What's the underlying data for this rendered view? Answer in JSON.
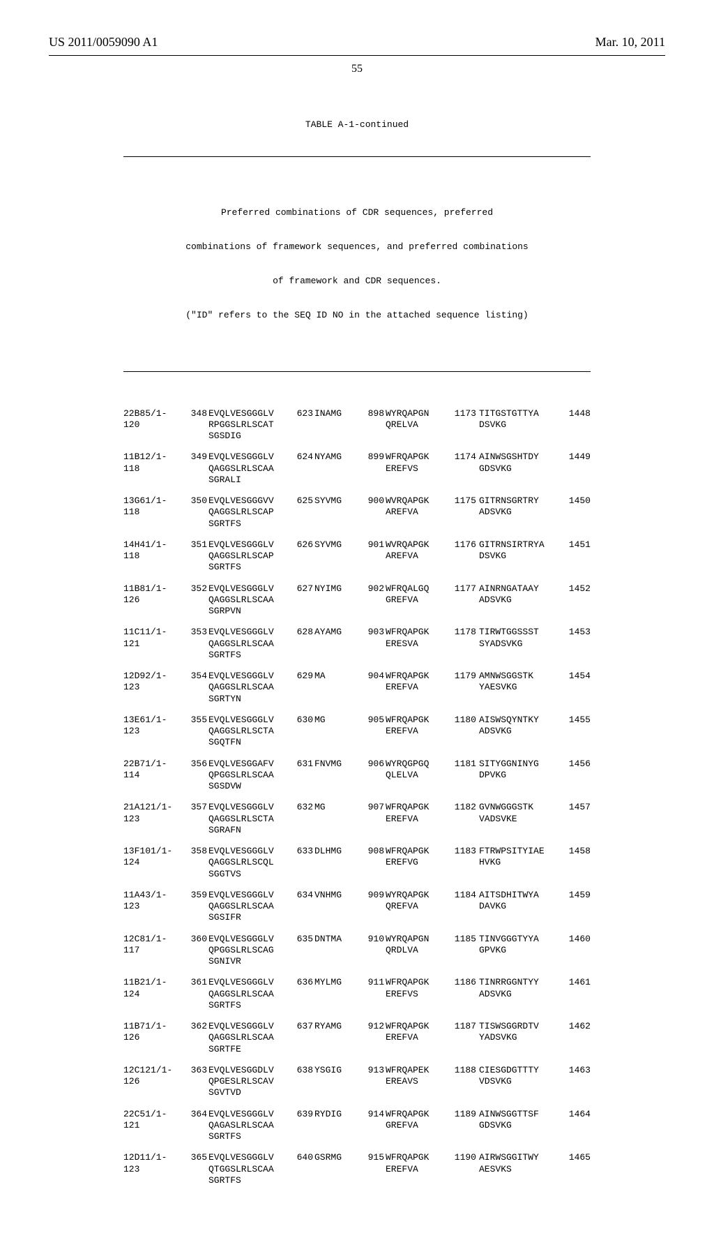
{
  "header": {
    "left": "US 2011/0059090 A1",
    "right": "Mar. 10, 2011"
  },
  "page_number": "55",
  "table": {
    "title": "TABLE A-1-continued",
    "caption_lines": [
      "Preferred combinations of CDR sequences, preferred",
      "combinations of framework sequences, and preferred combinations",
      "of framework and CDR sequences.",
      "(\"ID\" refers to the SEQ ID NO in the attached sequence listing)"
    ],
    "rows": [
      {
        "id": "22B85/1-120",
        "n1": "348",
        "s1": [
          "EVQLVESGGGLV",
          "RPGGSLRLSCAT",
          "SGSDIG"
        ],
        "n2": "623",
        "s2": "INAMG",
        "n3": "898",
        "s3": [
          "WYRQAPGN",
          "QRELVA"
        ],
        "n4": "1173",
        "s4": [
          "TITGSTGTTYA",
          "DSVKG"
        ],
        "n5": "1448"
      },
      {
        "id": "11B12/1-118",
        "n1": "349",
        "s1": [
          "EVQLVESGGGLV",
          "QAGGSLRLSCAA",
          "SGRALI"
        ],
        "n2": "624",
        "s2": "NYAMG",
        "n3": "899",
        "s3": [
          "WFRQAPGK",
          "EREFVS"
        ],
        "n4": "1174",
        "s4": [
          "AINWSGSHTDY",
          "GDSVKG"
        ],
        "n5": "1449"
      },
      {
        "id": "13G61/1-118",
        "n1": "350",
        "s1": [
          "EVQLVESGGGVV",
          "QAGGSLRLSCAP",
          "SGRTFS"
        ],
        "n2": "625",
        "s2": "SYVMG",
        "n3": "900",
        "s3": [
          "WVRQAPGK",
          "AREFVA"
        ],
        "n4": "1175",
        "s4": [
          "GITRNSGRTRY",
          "ADSVKG"
        ],
        "n5": "1450"
      },
      {
        "id": "14H41/1-118",
        "n1": "351",
        "s1": [
          "EVQLVESGGGLV",
          "QAGGSLRLSCAP",
          "SGRTFS"
        ],
        "n2": "626",
        "s2": "SYVMG",
        "n3": "901",
        "s3": [
          "WVRQAPGK",
          "AREFVA"
        ],
        "n4": "1176",
        "s4": [
          "GITRNSIRTRYA",
          "DSVKG"
        ],
        "n5": "1451"
      },
      {
        "id": "11B81/1-126",
        "n1": "352",
        "s1": [
          "EVQLVESGGGLV",
          "QAGGSLRLSCAA",
          "SGRPVN"
        ],
        "n2": "627",
        "s2": "NYIMG",
        "n3": "902",
        "s3": [
          "WFRQALGQ",
          "GREFVA"
        ],
        "n4": "1177",
        "s4": [
          "AINRNGATAAY",
          "ADSVKG"
        ],
        "n5": "1452"
      },
      {
        "id": "11C11/1-121",
        "n1": "353",
        "s1": [
          "EVQLVESGGGLV",
          "QAGGSLRLSCAA",
          "SGRTFS"
        ],
        "n2": "628",
        "s2": "AYAMG",
        "n3": "903",
        "s3": [
          "WFRQAPGK",
          "ERESVA"
        ],
        "n4": "1178",
        "s4": [
          "TIRWTGGSSST",
          "SYADSVKG"
        ],
        "n5": "1453"
      },
      {
        "id": "12D92/1-123",
        "n1": "354",
        "s1": [
          "EVQLVESGGGLV",
          "QAGGSLRLSCAA",
          "SGRTYN"
        ],
        "n2": "629",
        "s2": "MA",
        "n3": "904",
        "s3": [
          "WFRQAPGK",
          "EREFVA"
        ],
        "n4": "1179",
        "s4": [
          "AMNWSGGSTK",
          "YAESVKG"
        ],
        "n5": "1454"
      },
      {
        "id": "13E61/1-123",
        "n1": "355",
        "s1": [
          "EVQLVESGGGLV",
          "QAGGSLRLSCTA",
          "SGQTFN"
        ],
        "n2": "630",
        "s2": "MG",
        "n3": "905",
        "s3": [
          "WFRQAPGK",
          "EREFVA"
        ],
        "n4": "1180",
        "s4": [
          "AISWSQYNTKY",
          "ADSVKG"
        ],
        "n5": "1455"
      },
      {
        "id": "22B71/1-114",
        "n1": "356",
        "s1": [
          "EVQLVESGGAFV",
          "QPGGSLRLSCAA",
          "SGSDVW"
        ],
        "n2": "631",
        "s2": "FNVMG",
        "n3": "906",
        "s3": [
          "WYRQGPGQ",
          "QLELVA"
        ],
        "n4": "1181",
        "s4": [
          "SITYGGNINYG",
          "DPVKG"
        ],
        "n5": "1456"
      },
      {
        "id": "21A121/1-123",
        "n1": "357",
        "s1": [
          "EVQLVESGGGLV",
          "QAGGSLRLSCTA",
          "SGRAFN"
        ],
        "n2": "632",
        "s2": "MG",
        "n3": "907",
        "s3": [
          "WFRQAPGK",
          "EREFVA"
        ],
        "n4": "1182",
        "s4": [
          "GVNWGGGSTK",
          "VADSVKE"
        ],
        "n5": "1457"
      },
      {
        "id": "13F101/1-124",
        "n1": "358",
        "s1": [
          "EVQLVESGGGLV",
          "QAGGSLRLSCQL",
          "SGGTVS"
        ],
        "n2": "633",
        "s2": "DLHMG",
        "n3": "908",
        "s3": [
          "WFRQAPGK",
          "EREFVG"
        ],
        "n4": "1183",
        "s4": [
          "FTRWPSITYIAE",
          "HVKG"
        ],
        "n5": "1458"
      },
      {
        "id": "11A43/1-123",
        "n1": "359",
        "s1": [
          "EVQLVESGGGLV",
          "QAGGSLRLSCAA",
          "SGSIFR"
        ],
        "n2": "634",
        "s2": "VNHMG",
        "n3": "909",
        "s3": [
          "WYRQAPGK",
          "QREFVA"
        ],
        "n4": "1184",
        "s4": [
          "AITSDHITWYA",
          "DAVKG"
        ],
        "n5": "1459"
      },
      {
        "id": "12C81/1-117",
        "n1": "360",
        "s1": [
          "EVQLVESGGGLV",
          "QPGGSLRLSCAG",
          "SGNIVR"
        ],
        "n2": "635",
        "s2": "DNTMA",
        "n3": "910",
        "s3": [
          "WYRQAPGN",
          "QRDLVA"
        ],
        "n4": "1185",
        "s4": [
          "TINVGGGTYYA",
          "GPVKG"
        ],
        "n5": "1460"
      },
      {
        "id": "11B21/1-124",
        "n1": "361",
        "s1": [
          "EVQLVESGGGLV",
          "QAGGSLRLSCAA",
          "SGRTFS"
        ],
        "n2": "636",
        "s2": "MYLMG",
        "n3": "911",
        "s3": [
          "WFRQAPGK",
          "EREFVS"
        ],
        "n4": "1186",
        "s4": [
          "TINRRGGNTYY",
          "ADSVKG"
        ],
        "n5": "1461"
      },
      {
        "id": "11B71/1-126",
        "n1": "362",
        "s1": [
          "EVQLVESGGGLV",
          "QAGGSLRLSCAA",
          "SGRTFE"
        ],
        "n2": "637",
        "s2": "RYAMG",
        "n3": "912",
        "s3": [
          "WFRQAPGK",
          "EREFVA"
        ],
        "n4": "1187",
        "s4": [
          "TISWSGGRDTV",
          "YADSVKG"
        ],
        "n5": "1462"
      },
      {
        "id": "12C121/1-126",
        "n1": "363",
        "s1": [
          "EVQLVESGGDLV",
          "QPGESLRLSCAV",
          "SGVTVD"
        ],
        "n2": "638",
        "s2": "YSGIG",
        "n3": "913",
        "s3": [
          "WFRQAPEK",
          "EREAVS"
        ],
        "n4": "1188",
        "s4": [
          "CIESGDGTTTY",
          "VDSVKG"
        ],
        "n5": "1463"
      },
      {
        "id": "22C51/1-121",
        "n1": "364",
        "s1": [
          "EVQLVESGGGLV",
          "QAGASLRLSCAA",
          "SGRTFS"
        ],
        "n2": "639",
        "s2": "RYDIG",
        "n3": "914",
        "s3": [
          "WFRQAPGK",
          "GREFVA"
        ],
        "n4": "1189",
        "s4": [
          "AINWSGGTTSF",
          "GDSVKG"
        ],
        "n5": "1464"
      },
      {
        "id": "12D11/1-123",
        "n1": "365",
        "s1": [
          "EVQLVESGGGLV",
          "QTGGSLRLSCAA",
          "SGRTFS"
        ],
        "n2": "640",
        "s2": "GSRMG",
        "n3": "915",
        "s3": [
          "WFRQAPGK",
          "EREFVA"
        ],
        "n4": "1190",
        "s4": [
          "AIRWSGGITWY",
          "AESVKS"
        ],
        "n5": "1465"
      }
    ]
  }
}
